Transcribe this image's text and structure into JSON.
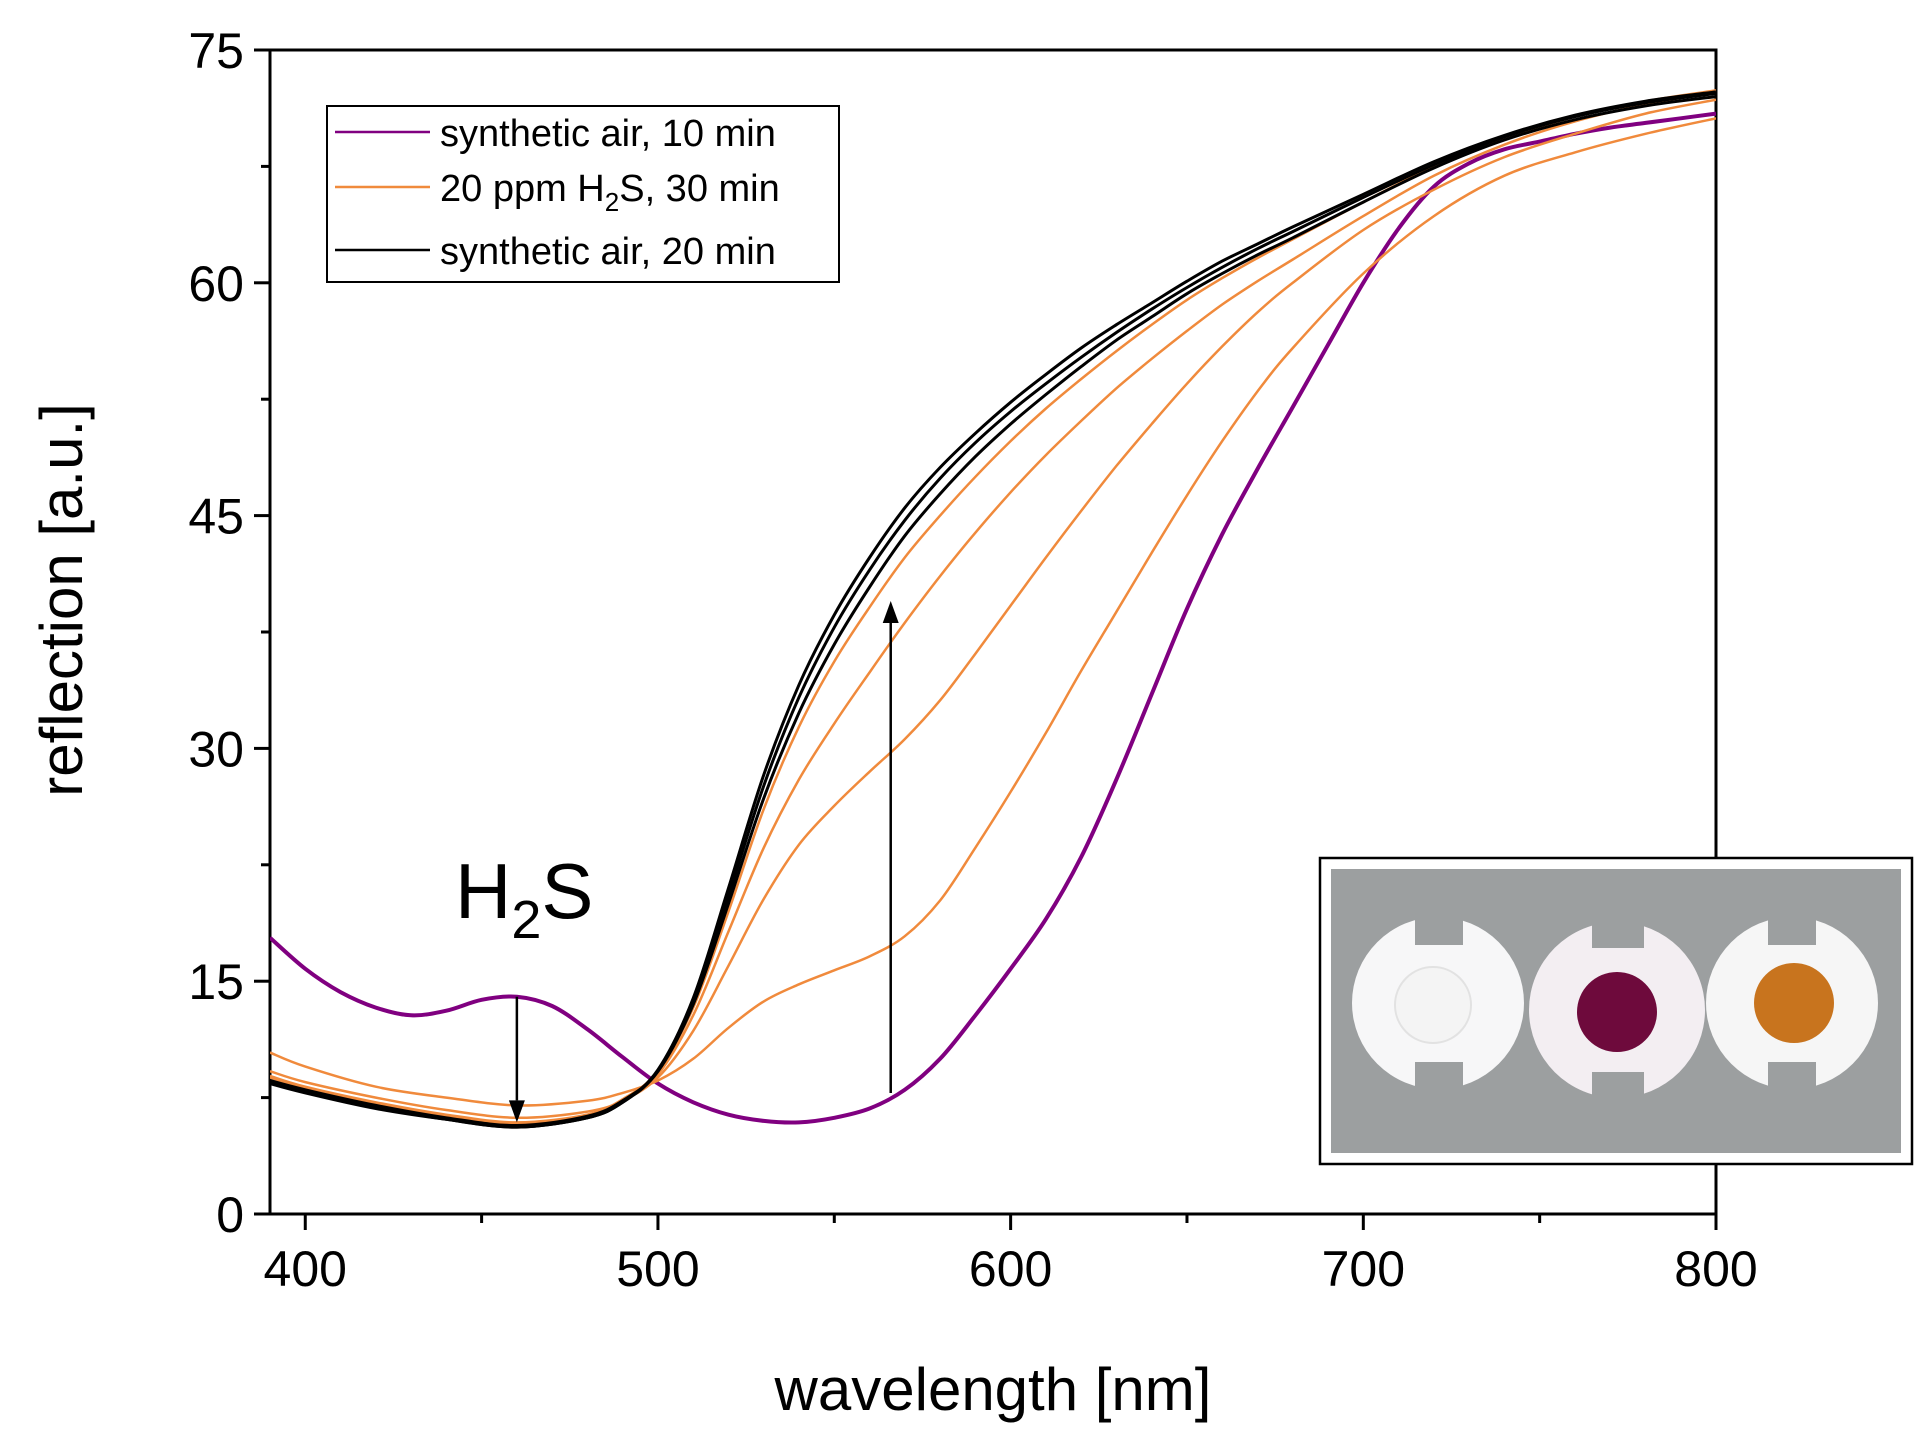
{
  "chart_data": {
    "type": "line",
    "title": "",
    "xlabel": "wavelength [nm]",
    "ylabel": "reflection [a.u.]",
    "xlim": [
      390,
      800
    ],
    "ylim": [
      0,
      75
    ],
    "xticks": [
      400,
      500,
      600,
      700,
      800
    ],
    "yticks": [
      0,
      15,
      30,
      45,
      60,
      75
    ],
    "x_tick_labels": [
      "400",
      "500",
      "600",
      "700",
      "800"
    ],
    "y_tick_labels": [
      "0",
      "15",
      "30",
      "45",
      "60",
      "75"
    ],
    "grid": false,
    "legend_position": "top-left",
    "legend": [
      {
        "label": "synthetic air, 10 min",
        "color": "#800080"
      },
      {
        "label_main": "20 ppm H",
        "label_sub": "2",
        "label_rest": "S, 30 min",
        "color": "#f08a3c"
      },
      {
        "label": "synthetic air, 20 min",
        "color": "#000000"
      }
    ],
    "annotation": {
      "main": "H",
      "sub": "2",
      "rest": "S"
    },
    "arrows": [
      {
        "x": 460,
        "y_from": 14.0,
        "y_to": 5.9,
        "direction": "down"
      },
      {
        "x": 566,
        "y_from": 7.8,
        "y_to": 39.5,
        "direction": "up"
      }
    ],
    "inset": {
      "description_color_samples": [
        "#f4f4f4",
        "#6e0a3c",
        "#c8741e"
      ]
    },
    "series": [
      {
        "name": "synthetic air, 10 min",
        "color": "#800080",
        "x": [
          390,
          400,
          410,
          420,
          430,
          440,
          450,
          460,
          470,
          480,
          490,
          500,
          510,
          520,
          530,
          540,
          550,
          560,
          570,
          580,
          590,
          600,
          610,
          620,
          630,
          640,
          650,
          660,
          670,
          680,
          690,
          700,
          710,
          720,
          730,
          740,
          750,
          760,
          770,
          780,
          790,
          800
        ],
        "y": [
          17.8,
          15.8,
          14.3,
          13.3,
          12.8,
          13.1,
          13.8,
          14.0,
          13.4,
          11.9,
          10.1,
          8.4,
          7.2,
          6.4,
          6.0,
          5.9,
          6.2,
          6.8,
          8.0,
          10.0,
          12.8,
          15.8,
          19.0,
          23.0,
          28.0,
          33.5,
          39.0,
          43.8,
          48.0,
          52.0,
          56.0,
          60.0,
          63.5,
          66.2,
          67.7,
          68.6,
          69.1,
          69.6,
          70.0,
          70.3,
          70.6,
          70.9
        ]
      },
      {
        "name": "20 ppm H2S, 30 min (a)",
        "color": "#f08a3c",
        "x": [
          390,
          400,
          420,
          440,
          460,
          480,
          490,
          500,
          510,
          520,
          530,
          540,
          550,
          560,
          570,
          580,
          590,
          600,
          610,
          620,
          630,
          640,
          650,
          660,
          670,
          680,
          700,
          720,
          740,
          760,
          780,
          800
        ],
        "y": [
          10.4,
          9.5,
          8.2,
          7.5,
          7.0,
          7.3,
          7.8,
          8.6,
          10.0,
          12.0,
          13.7,
          14.8,
          15.7,
          16.6,
          17.9,
          20.2,
          23.6,
          27.2,
          31.0,
          35.0,
          38.8,
          42.6,
          46.3,
          49.8,
          53.0,
          55.8,
          60.6,
          64.3,
          66.9,
          68.4,
          69.6,
          70.6
        ]
      },
      {
        "name": "20 ppm H2S, 30 min (b)",
        "color": "#f08a3c",
        "x": [
          390,
          400,
          420,
          440,
          460,
          480,
          490,
          500,
          510,
          520,
          530,
          540,
          550,
          560,
          570,
          580,
          590,
          600,
          610,
          620,
          630,
          640,
          650,
          660,
          670,
          680,
          700,
          720,
          740,
          760,
          780,
          800
        ],
        "y": [
          9.2,
          8.5,
          7.5,
          6.7,
          6.2,
          6.6,
          7.3,
          8.8,
          11.8,
          16.0,
          20.3,
          23.8,
          26.3,
          28.5,
          30.6,
          33.1,
          36.1,
          39.2,
          42.3,
          45.3,
          48.2,
          50.9,
          53.5,
          55.9,
          58.1,
          60.0,
          63.4,
          66.0,
          68.1,
          69.6,
          70.9,
          71.8
        ]
      },
      {
        "name": "20 ppm H2S, 30 min (c)",
        "color": "#f08a3c",
        "x": [
          390,
          400,
          420,
          440,
          460,
          480,
          490,
          500,
          510,
          520,
          530,
          540,
          550,
          560,
          570,
          580,
          590,
          600,
          610,
          620,
          630,
          640,
          650,
          660,
          670,
          680,
          700,
          720,
          740,
          760,
          780,
          800
        ],
        "y": [
          8.9,
          8.2,
          7.2,
          6.4,
          5.9,
          6.4,
          7.3,
          9.0,
          12.8,
          18.2,
          23.6,
          28.0,
          31.6,
          34.9,
          38.1,
          41.1,
          43.9,
          46.5,
          48.9,
          51.1,
          53.2,
          55.1,
          56.9,
          58.6,
          60.1,
          61.5,
          64.3,
          66.9,
          68.9,
          70.4,
          71.5,
          72.3
        ]
      },
      {
        "name": "20 ppm H2S, 30 min (d)",
        "color": "#f08a3c",
        "x": [
          390,
          400,
          420,
          440,
          460,
          480,
          490,
          500,
          510,
          520,
          530,
          540,
          550,
          560,
          570,
          580,
          590,
          600,
          610,
          620,
          630,
          640,
          650,
          660,
          670,
          680,
          700,
          720,
          740,
          760,
          780,
          800
        ],
        "y": [
          8.8,
          8.1,
          7.1,
          6.3,
          5.8,
          6.4,
          7.4,
          9.2,
          13.3,
          19.5,
          26.1,
          31.4,
          35.6,
          39.1,
          42.3,
          45.0,
          47.5,
          49.8,
          51.9,
          53.8,
          55.6,
          57.3,
          58.9,
          60.3,
          61.6,
          62.8,
          65.2,
          67.5,
          69.3,
          70.7,
          71.7,
          72.4
        ]
      },
      {
        "name": "synthetic air, 20 min (a)",
        "color": "#000000",
        "x": [
          390,
          400,
          420,
          440,
          460,
          480,
          490,
          500,
          510,
          520,
          530,
          540,
          550,
          560,
          570,
          580,
          590,
          600,
          610,
          620,
          630,
          640,
          650,
          660,
          670,
          680,
          700,
          720,
          740,
          760,
          780,
          800
        ],
        "y": [
          8.6,
          8.0,
          7.0,
          6.2,
          5.7,
          6.3,
          7.3,
          9.2,
          13.5,
          20.0,
          26.8,
          32.3,
          36.7,
          40.4,
          43.7,
          46.4,
          48.8,
          50.9,
          52.8,
          54.6,
          56.3,
          57.8,
          59.3,
          60.6,
          61.8,
          62.9,
          65.2,
          67.4,
          69.2,
          70.5,
          71.4,
          72.0
        ]
      },
      {
        "name": "synthetic air, 20 min (b)",
        "color": "#000000",
        "x": [
          390,
          400,
          420,
          440,
          460,
          480,
          490,
          500,
          510,
          520,
          530,
          540,
          550,
          560,
          570,
          580,
          590,
          600,
          610,
          620,
          630,
          640,
          650,
          660,
          670,
          680,
          700,
          720,
          740,
          760,
          780,
          800
        ],
        "y": [
          8.5,
          7.9,
          6.9,
          6.1,
          5.6,
          6.2,
          7.2,
          9.2,
          13.7,
          20.5,
          27.6,
          33.3,
          37.8,
          41.5,
          44.7,
          47.4,
          49.7,
          51.7,
          53.5,
          55.2,
          56.8,
          58.3,
          59.7,
          61.0,
          62.2,
          63.3,
          65.5,
          67.6,
          69.4,
          70.7,
          71.6,
          72.2
        ]
      },
      {
        "name": "synthetic air, 20 min (c)",
        "color": "#000000",
        "x": [
          390,
          400,
          420,
          440,
          460,
          480,
          490,
          500,
          510,
          520,
          530,
          540,
          550,
          560,
          570,
          580,
          590,
          600,
          610,
          620,
          630,
          640,
          650,
          660,
          670,
          680,
          700,
          720,
          740,
          760,
          780,
          800
        ],
        "y": [
          8.4,
          7.8,
          6.8,
          6.1,
          5.6,
          6.2,
          7.2,
          9.3,
          13.9,
          21.0,
          28.3,
          34.1,
          38.6,
          42.3,
          45.5,
          48.1,
          50.3,
          52.3,
          54.1,
          55.8,
          57.3,
          58.7,
          60.1,
          61.4,
          62.5,
          63.6,
          65.7,
          67.8,
          69.5,
          70.8,
          71.7,
          72.3
        ]
      }
    ]
  }
}
